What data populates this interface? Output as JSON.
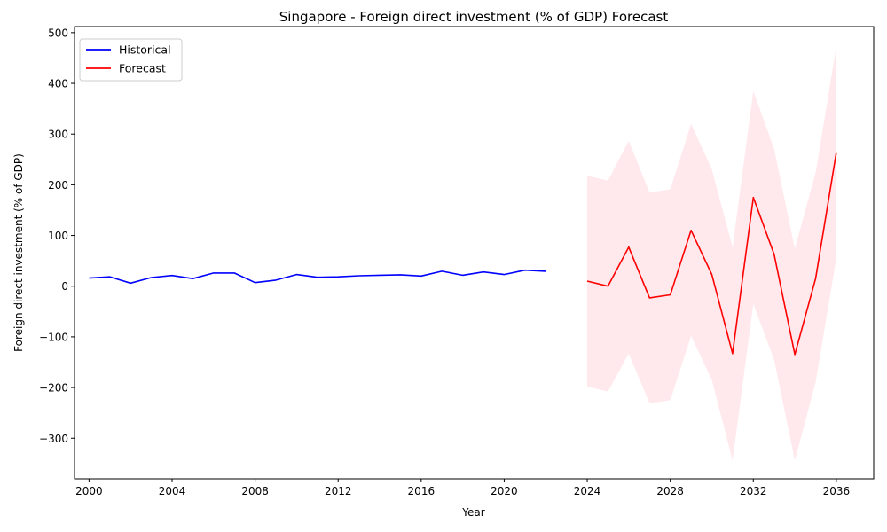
{
  "chart_data": {
    "type": "line",
    "title": "Singapore - Foreign direct investment (% of GDP) Forecast",
    "xlabel": "Year",
    "ylabel": "Foreign direct investment (% of GDP)",
    "xlim": [
      1999.3,
      2037.8
    ],
    "ylim": [
      -380,
      512
    ],
    "x_ticks": [
      2000,
      2004,
      2008,
      2012,
      2016,
      2020,
      2024,
      2028,
      2032,
      2036
    ],
    "y_ticks": [
      -300,
      -200,
      -100,
      0,
      100,
      200,
      300,
      400,
      500
    ],
    "y_tick_labels": [
      "−300",
      "−200",
      "−100",
      "0",
      "100",
      "200",
      "300",
      "400",
      "500"
    ],
    "grid": false,
    "legend_position": "top-left",
    "series": [
      {
        "name": "Historical",
        "color": "#0000ff",
        "x": [
          2000,
          2001,
          2002,
          2003,
          2004,
          2005,
          2006,
          2007,
          2008,
          2009,
          2010,
          2011,
          2012,
          2013,
          2014,
          2015,
          2016,
          2017,
          2018,
          2019,
          2020,
          2021,
          2022
        ],
        "values": [
          16,
          18.5,
          6,
          17,
          21,
          15,
          26,
          26,
          7,
          12,
          23,
          17.5,
          18.5,
          20.5,
          21.5,
          22.5,
          20,
          29.5,
          21.5,
          28,
          23,
          31.5,
          29.5
        ]
      },
      {
        "name": "Forecast",
        "color": "#ff0000",
        "x": [
          2024,
          2025,
          2026,
          2027,
          2028,
          2029,
          2030,
          2031,
          2032,
          2033,
          2034,
          2035,
          2036
        ],
        "values": [
          10,
          0,
          77,
          -23,
          -17,
          110,
          23,
          -133,
          175,
          63,
          -135,
          15,
          264
        ]
      }
    ],
    "confidence_band": {
      "color": "#ffc0cb",
      "x": [
        2024,
        2025,
        2026,
        2027,
        2028,
        2029,
        2030,
        2031,
        2032,
        2033,
        2034,
        2035,
        2036
      ],
      "lower": [
        -198,
        -208,
        -133,
        -231,
        -225,
        -98,
        -185,
        -344,
        -35,
        -145,
        -344,
        -190,
        55
      ],
      "upper": [
        218,
        208,
        287,
        185,
        191,
        320,
        231,
        77,
        385,
        271,
        74,
        224,
        473
      ]
    }
  }
}
